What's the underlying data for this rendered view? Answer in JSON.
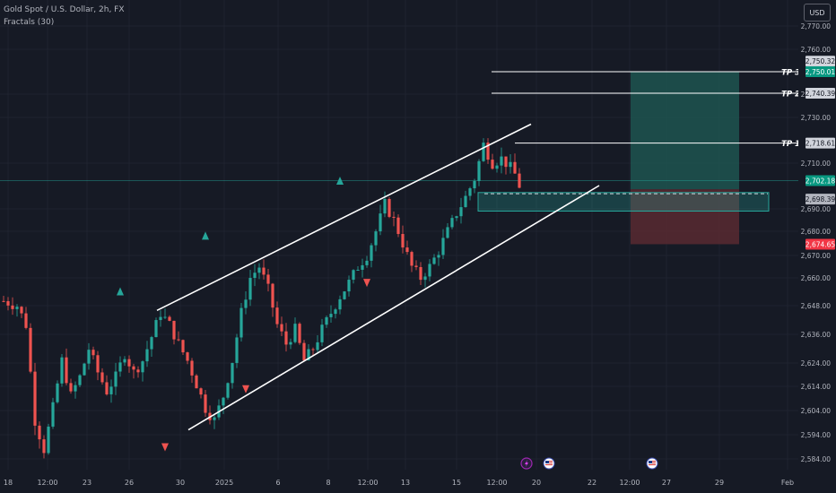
{
  "header": {
    "symbol_line": "Gold Spot / U.S. Dollar, 2h, FX",
    "indicator_line": "Fractals (30)",
    "currency_button": "USD"
  },
  "colors": {
    "background": "#161a25",
    "up_candle": "#26a69a",
    "down_candle": "#ef5350",
    "channel": "#ffffff",
    "target_zone": "#1f5c55",
    "stop_zone": "#5c2b32",
    "entry_zone": "#26a69a"
  },
  "chart_data": {
    "type": "candlestick",
    "symbol": "Gold Spot / U.S. Dollar",
    "interval": "2h",
    "y_axis": {
      "range": [
        2580,
        2772
      ],
      "tick_labels": [
        "2,770.00",
        "2,760.00",
        "2,740.00",
        "2,730.00",
        "2,710.00",
        "2,690.00",
        "2,680.00",
        "2,670.00",
        "2,660.00",
        "2,648.00",
        "2,636.00",
        "2,624.00",
        "2,614.00",
        "2,604.00",
        "2,594.00",
        "2,584.00"
      ]
    },
    "x_axis": {
      "tick_labels": [
        "18",
        "12:00",
        "23",
        "26",
        "30",
        "2025",
        "6",
        "8",
        "12:00",
        "13",
        "15",
        "12:00",
        "20",
        "22",
        "12:00",
        "27",
        "29",
        "Feb"
      ]
    },
    "close_path": [
      [
        0,
        2650
      ],
      [
        3,
        2648
      ],
      [
        5,
        2640
      ],
      [
        7,
        2600
      ],
      [
        9,
        2588
      ],
      [
        11,
        2605
      ],
      [
        13,
        2625
      ],
      [
        15,
        2610
      ],
      [
        17,
        2618
      ],
      [
        19,
        2630
      ],
      [
        21,
        2620
      ],
      [
        23,
        2612
      ],
      [
        25,
        2618
      ],
      [
        27,
        2628
      ],
      [
        29,
        2620
      ],
      [
        31,
        2625
      ],
      [
        33,
        2635
      ],
      [
        35,
        2645
      ],
      [
        37,
        2640
      ],
      [
        39,
        2632
      ],
      [
        41,
        2625
      ],
      [
        43,
        2615
      ],
      [
        45,
        2605
      ],
      [
        47,
        2600
      ],
      [
        49,
        2610
      ],
      [
        51,
        2625
      ],
      [
        53,
        2645
      ],
      [
        55,
        2660
      ],
      [
        57,
        2665
      ],
      [
        59,
        2655
      ],
      [
        61,
        2640
      ],
      [
        63,
        2632
      ],
      [
        65,
        2638
      ],
      [
        67,
        2625
      ],
      [
        69,
        2630
      ],
      [
        71,
        2638
      ],
      [
        73,
        2645
      ],
      [
        75,
        2652
      ],
      [
        77,
        2658
      ],
      [
        79,
        2665
      ],
      [
        81,
        2670
      ],
      [
        83,
        2680
      ],
      [
        85,
        2692
      ],
      [
        87,
        2685
      ],
      [
        89,
        2675
      ],
      [
        91,
        2665
      ],
      [
        93,
        2660
      ],
      [
        95,
        2665
      ],
      [
        97,
        2672
      ],
      [
        99,
        2680
      ],
      [
        101,
        2688
      ],
      [
        103,
        2695
      ],
      [
        105,
        2703
      ],
      [
        107,
        2718
      ],
      [
        109,
        2710
      ],
      [
        111,
        2712
      ],
      [
        113,
        2708
      ],
      [
        114,
        2705
      ],
      [
        115,
        2700
      ]
    ],
    "fractals": [
      {
        "type": "up",
        "index": 26,
        "price": 2654
      },
      {
        "type": "up",
        "index": 45,
        "price": 2678
      },
      {
        "type": "up",
        "index": 75,
        "price": 2702
      },
      {
        "type": "down",
        "index": 36,
        "price": 2589
      },
      {
        "type": "down",
        "index": 54,
        "price": 2613
      },
      {
        "type": "down",
        "index": 81,
        "price": 2658
      }
    ],
    "trend_channel": {
      "upper": [
        [
          2646,
          2727
        ],
        [
          2703,
          2727
        ]
      ],
      "lower": [
        [
          2596,
          2700
        ],
        [
          2656,
          2700
        ]
      ]
    },
    "levels": [
      {
        "label": "TP 3",
        "price": "2,750.01",
        "value": 2750.01
      },
      {
        "label": "TP 2",
        "price": "2,740.39",
        "value": 2740.39
      },
      {
        "label": "TP 1",
        "price": "2,718.61",
        "value": 2718.61
      }
    ],
    "price_tags": [
      {
        "label": "2,750.32",
        "value": 2750.32,
        "color": "#d1d4dc",
        "text_color": "#131722"
      },
      {
        "label": "2,750.01",
        "value": 2750.01,
        "color": "#089981",
        "text_color": "#ffffff"
      },
      {
        "label": "2,740.39",
        "value": 2740.39,
        "color": "#d1d4dc",
        "text_color": "#131722"
      },
      {
        "label": "2,718.61",
        "value": 2718.61,
        "color": "#d1d4dc",
        "text_color": "#131722"
      },
      {
        "label": "2,702.18",
        "value": 2702.18,
        "color": "#089981",
        "text_color": "#ffffff"
      },
      {
        "label": "2,698.39",
        "value": 2698.39,
        "color": "#b2b5be",
        "text_color": "#131722"
      },
      {
        "label": "2,674.65",
        "value": 2674.65,
        "color": "#f23645",
        "text_color": "#ffffff"
      }
    ],
    "position": {
      "entry": 2698.39,
      "target": 2750.01,
      "stop": 2674.65
    },
    "entry_zone": {
      "top": 2697,
      "bottom": 2689
    },
    "current_price": 2702.18,
    "events": [
      {
        "icon": "lightning-icon"
      },
      {
        "icon": "us-flag-icon"
      },
      {
        "icon": "us-flag-icon"
      }
    ]
  }
}
